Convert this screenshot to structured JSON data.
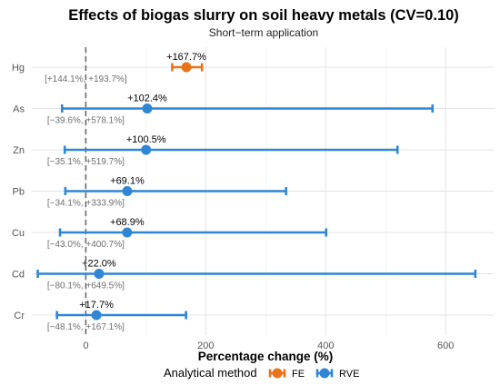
{
  "chart_data": {
    "type": "scatter",
    "title": "Effects of biogas slurry on soil heavy metals (CV=0.10)",
    "subtitle": "Short−term application",
    "xlabel": "Percentage change (%)",
    "ylabel": "",
    "xlim": [
      -90,
      680
    ],
    "x_ticks": [
      0,
      200,
      400,
      600
    ],
    "reference_line": 0,
    "grid": true,
    "legend": {
      "title": "Analytical method",
      "position": "bottom",
      "entries": [
        {
          "name": "FE",
          "color": "#E8731A"
        },
        {
          "name": "RVE",
          "color": "#2E86D4"
        }
      ]
    },
    "categories": [
      "Hg",
      "As",
      "Zn",
      "Pb",
      "Cu",
      "Cd",
      "Cr"
    ],
    "points": [
      {
        "metal": "Hg",
        "method": "FE",
        "estimate": 167.7,
        "low": 144.1,
        "high": 193.7,
        "label": "+167.7%",
        "ci_label": "[+144.1%, +193.7%]"
      },
      {
        "metal": "As",
        "method": "RVE",
        "estimate": 102.4,
        "low": -39.6,
        "high": 578.1,
        "label": "+102.4%",
        "ci_label": "[−39.6%, +578.1%]"
      },
      {
        "metal": "Zn",
        "method": "RVE",
        "estimate": 100.5,
        "low": -35.1,
        "high": 519.7,
        "label": "+100.5%",
        "ci_label": "[−35.1%, +519.7%]"
      },
      {
        "metal": "Pb",
        "method": "RVE",
        "estimate": 69.1,
        "low": -34.1,
        "high": 333.9,
        "label": "+69.1%",
        "ci_label": "[−34.1%, +333.9%]"
      },
      {
        "metal": "Cu",
        "method": "RVE",
        "estimate": 68.9,
        "low": -43.0,
        "high": 400.7,
        "label": "+68.9%",
        "ci_label": "[−43.0%, +400.7%]"
      },
      {
        "metal": "Cd",
        "method": "RVE",
        "estimate": 22.0,
        "low": -80.1,
        "high": 649.5,
        "label": "+22.0%",
        "ci_label": "[−80.1%, +649.5%]"
      },
      {
        "metal": "Cr",
        "method": "RVE",
        "estimate": 17.7,
        "low": -48.1,
        "high": 167.1,
        "label": "+17.7%",
        "ci_label": "[−48.1%, +167.1%]"
      }
    ]
  }
}
